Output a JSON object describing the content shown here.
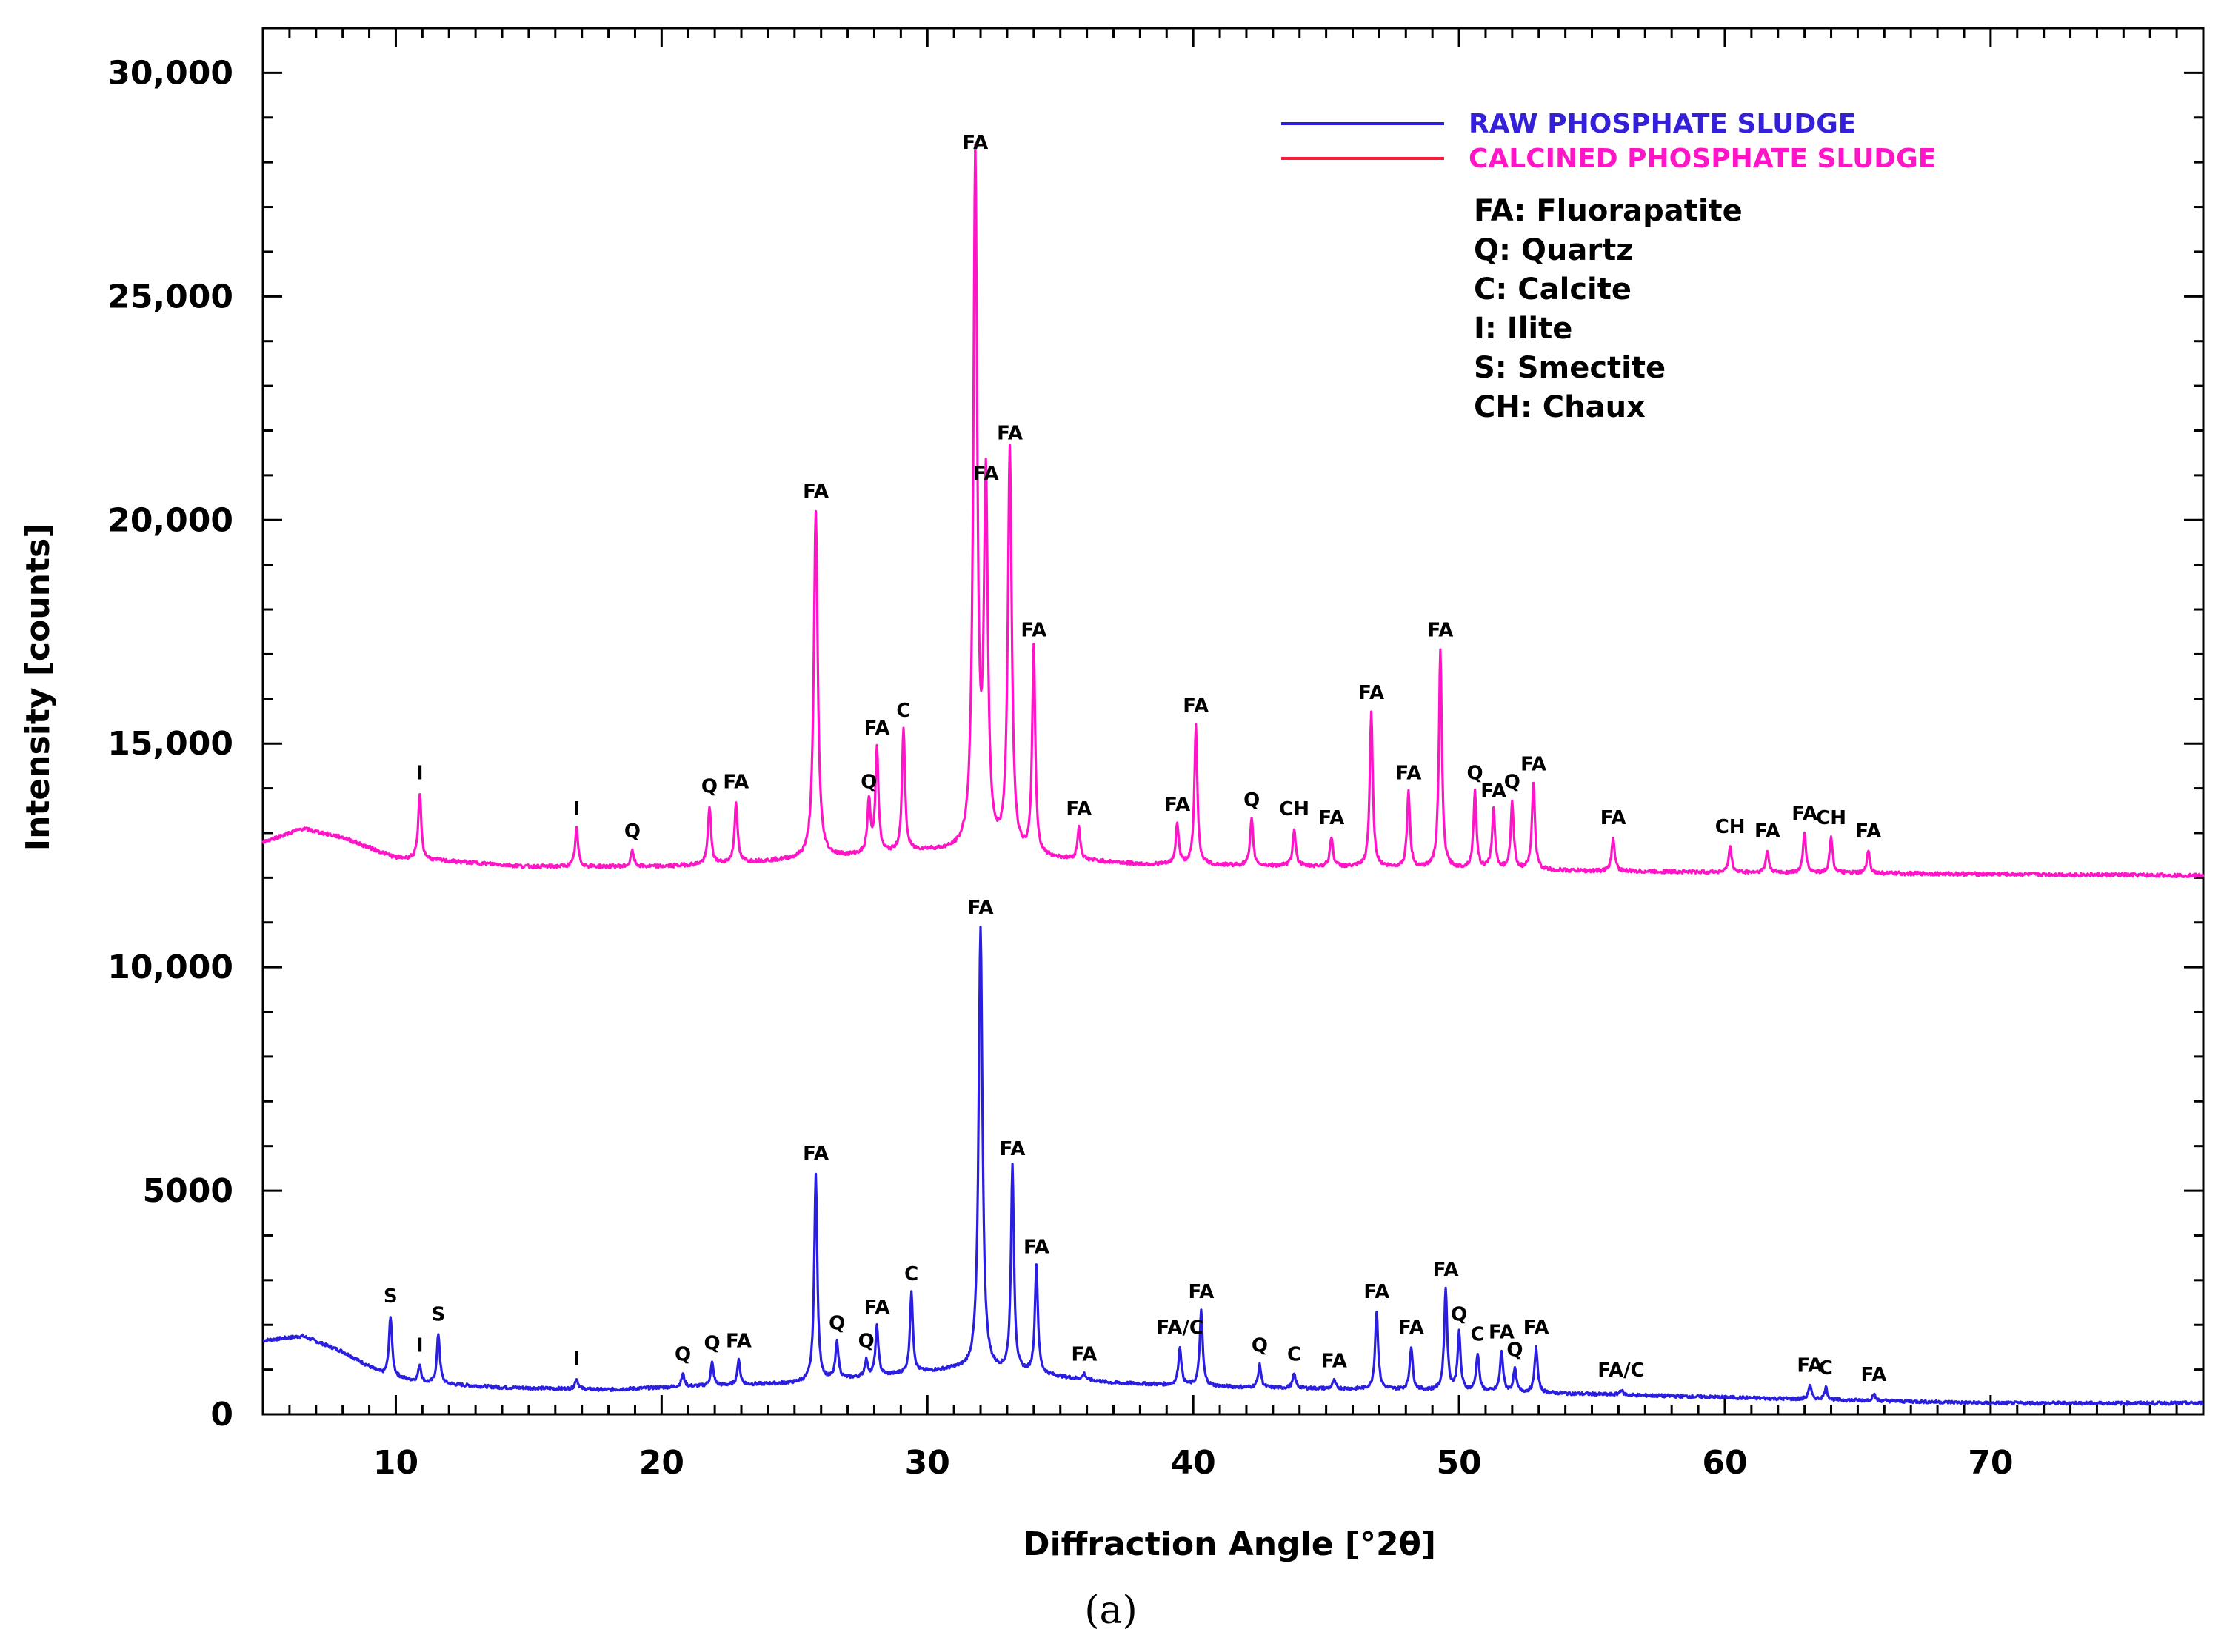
{
  "chart_data": {
    "type": "line",
    "xlabel": "Diffraction Angle [°2θ]",
    "ylabel": "Intensity [counts]",
    "xlim": [
      5,
      78
    ],
    "ylim": [
      0,
      31000
    ],
    "x_ticks": [
      {
        "value": 10,
        "label": "10"
      },
      {
        "value": 20,
        "label": "20"
      },
      {
        "value": 30,
        "label": "30"
      },
      {
        "value": 40,
        "label": "40"
      },
      {
        "value": 50,
        "label": "50"
      },
      {
        "value": 60,
        "label": "60"
      },
      {
        "value": 70,
        "label": "70"
      }
    ],
    "y_ticks": [
      {
        "value": 0,
        "label": "0"
      },
      {
        "value": 5000,
        "label": "5000"
      },
      {
        "value": 10000,
        "label": "10,000"
      },
      {
        "value": 15000,
        "label": "15,000"
      },
      {
        "value": 20000,
        "label": "20,000"
      },
      {
        "value": 25000,
        "label": "25,000"
      },
      {
        "value": 30000,
        "label": "30,000"
      }
    ],
    "grid": false,
    "legend_position": "top-right",
    "series": [
      {
        "name": "RAW PHOSPHATE SLUDGE",
        "color": "#2a1ee0",
        "label_color": "#3320d8",
        "baseline": [
          [
            5,
            1650
          ],
          [
            6.5,
            1750
          ],
          [
            8,
            1400
          ],
          [
            9.5,
            900
          ],
          [
            11,
            700
          ],
          [
            14,
            600
          ],
          [
            18,
            550
          ],
          [
            20,
            600
          ],
          [
            25,
            700
          ],
          [
            28,
            850
          ],
          [
            31,
            1000
          ],
          [
            34,
            900
          ],
          [
            37,
            700
          ],
          [
            42,
            600
          ],
          [
            48,
            550
          ],
          [
            55,
            450
          ],
          [
            62,
            350
          ],
          [
            70,
            250
          ],
          [
            78,
            250
          ]
        ],
        "peaks": [
          {
            "x": 9.8,
            "y": 2200,
            "label": "S"
          },
          {
            "x": 10.9,
            "y": 1100,
            "label": "I"
          },
          {
            "x": 11.6,
            "y": 1800,
            "label": "S"
          },
          {
            "x": 16.8,
            "y": 800,
            "label": "I"
          },
          {
            "x": 20.8,
            "y": 900,
            "label": "Q"
          },
          {
            "x": 21.9,
            "y": 1150,
            "label": "Q"
          },
          {
            "x": 22.9,
            "y": 1200,
            "label": "FA"
          },
          {
            "x": 25.8,
            "y": 5400,
            "label": "FA"
          },
          {
            "x": 26.6,
            "y": 1600,
            "label": "Q"
          },
          {
            "x": 27.7,
            "y": 1200,
            "label": "Q"
          },
          {
            "x": 28.1,
            "y": 1950,
            "label": "FA"
          },
          {
            "x": 29.4,
            "y": 2700,
            "label": "C"
          },
          {
            "x": 32.0,
            "y": 10900,
            "label": "FA"
          },
          {
            "x": 33.2,
            "y": 5500,
            "label": "FA"
          },
          {
            "x": 34.1,
            "y": 3300,
            "label": "FA"
          },
          {
            "x": 35.9,
            "y": 900,
            "label": "FA"
          },
          {
            "x": 39.5,
            "y": 1500,
            "label": "FA/C"
          },
          {
            "x": 40.3,
            "y": 2300,
            "label": "FA"
          },
          {
            "x": 42.5,
            "y": 1100,
            "label": "Q"
          },
          {
            "x": 43.8,
            "y": 900,
            "label": "C"
          },
          {
            "x": 45.3,
            "y": 750,
            "label": "FA"
          },
          {
            "x": 46.9,
            "y": 2300,
            "label": "FA"
          },
          {
            "x": 48.2,
            "y": 1500,
            "label": "FA"
          },
          {
            "x": 49.5,
            "y": 2800,
            "label": "FA"
          },
          {
            "x": 50.0,
            "y": 1800,
            "label": "Q"
          },
          {
            "x": 50.7,
            "y": 1350,
            "label": "C"
          },
          {
            "x": 51.6,
            "y": 1400,
            "label": "FA"
          },
          {
            "x": 52.1,
            "y": 1000,
            "label": "Q"
          },
          {
            "x": 52.9,
            "y": 1500,
            "label": "FA"
          },
          {
            "x": 56.1,
            "y": 550,
            "label": "FA/C"
          },
          {
            "x": 63.2,
            "y": 650,
            "label": "FA"
          },
          {
            "x": 63.8,
            "y": 600,
            "label": "C"
          },
          {
            "x": 65.6,
            "y": 450,
            "label": "FA"
          }
        ]
      },
      {
        "name": "CALCINED PHOSPHATE SLUDGE",
        "color": "#ff14c8",
        "label_color": "#ff14c8",
        "baseline": [
          [
            5,
            12800
          ],
          [
            6.5,
            13100
          ],
          [
            8,
            12900
          ],
          [
            10,
            12450
          ],
          [
            15,
            12250
          ],
          [
            20,
            12250
          ],
          [
            25,
            12400
          ],
          [
            30,
            12600
          ],
          [
            34,
            12450
          ],
          [
            38,
            12300
          ],
          [
            45,
            12250
          ],
          [
            55,
            12150
          ],
          [
            65,
            12100
          ],
          [
            78,
            12050
          ]
        ],
        "peaks": [
          {
            "x": 10.9,
            "y": 13900,
            "label": "I"
          },
          {
            "x": 16.8,
            "y": 13100,
            "label": "I"
          },
          {
            "x": 18.9,
            "y": 12600,
            "label": "Q"
          },
          {
            "x": 21.8,
            "y": 13600,
            "label": "Q"
          },
          {
            "x": 22.8,
            "y": 13700,
            "label": "FA"
          },
          {
            "x": 25.8,
            "y": 20200,
            "label": "FA"
          },
          {
            "x": 27.8,
            "y": 13700,
            "label": "Q"
          },
          {
            "x": 28.1,
            "y": 14900,
            "label": "FA"
          },
          {
            "x": 29.1,
            "y": 15300,
            "label": "C"
          },
          {
            "x": 31.8,
            "y": 28000,
            "label": "FA"
          },
          {
            "x": 32.2,
            "y": 20600,
            "label": "FA"
          },
          {
            "x": 33.1,
            "y": 21500,
            "label": "FA"
          },
          {
            "x": 34.0,
            "y": 17100,
            "label": "FA"
          },
          {
            "x": 35.7,
            "y": 13100,
            "label": "FA"
          },
          {
            "x": 39.4,
            "y": 13200,
            "label": "FA"
          },
          {
            "x": 40.1,
            "y": 15400,
            "label": "FA"
          },
          {
            "x": 42.2,
            "y": 13300,
            "label": "Q"
          },
          {
            "x": 43.8,
            "y": 13100,
            "label": "CH"
          },
          {
            "x": 45.2,
            "y": 12900,
            "label": "FA"
          },
          {
            "x": 46.7,
            "y": 15700,
            "label": "FA"
          },
          {
            "x": 48.1,
            "y": 13900,
            "label": "FA"
          },
          {
            "x": 49.3,
            "y": 17100,
            "label": "FA"
          },
          {
            "x": 50.6,
            "y": 13900,
            "label": "Q"
          },
          {
            "x": 51.3,
            "y": 13500,
            "label": "FA"
          },
          {
            "x": 52.0,
            "y": 13700,
            "label": "Q"
          },
          {
            "x": 52.8,
            "y": 14100,
            "label": "FA"
          },
          {
            "x": 55.8,
            "y": 12900,
            "label": "FA"
          },
          {
            "x": 60.2,
            "y": 12700,
            "label": "CH"
          },
          {
            "x": 61.6,
            "y": 12600,
            "label": "FA"
          },
          {
            "x": 63.0,
            "y": 13000,
            "label": "FA"
          },
          {
            "x": 64.0,
            "y": 12900,
            "label": "CH"
          },
          {
            "x": 65.4,
            "y": 12600,
            "label": "FA"
          }
        ]
      }
    ],
    "phase_key": [
      "FA: Fluorapatite",
      "Q: Quartz",
      "C: Calcite",
      "I: Ilite",
      "S: Smectite",
      "CH: Chaux"
    ],
    "caption": "(a)"
  }
}
